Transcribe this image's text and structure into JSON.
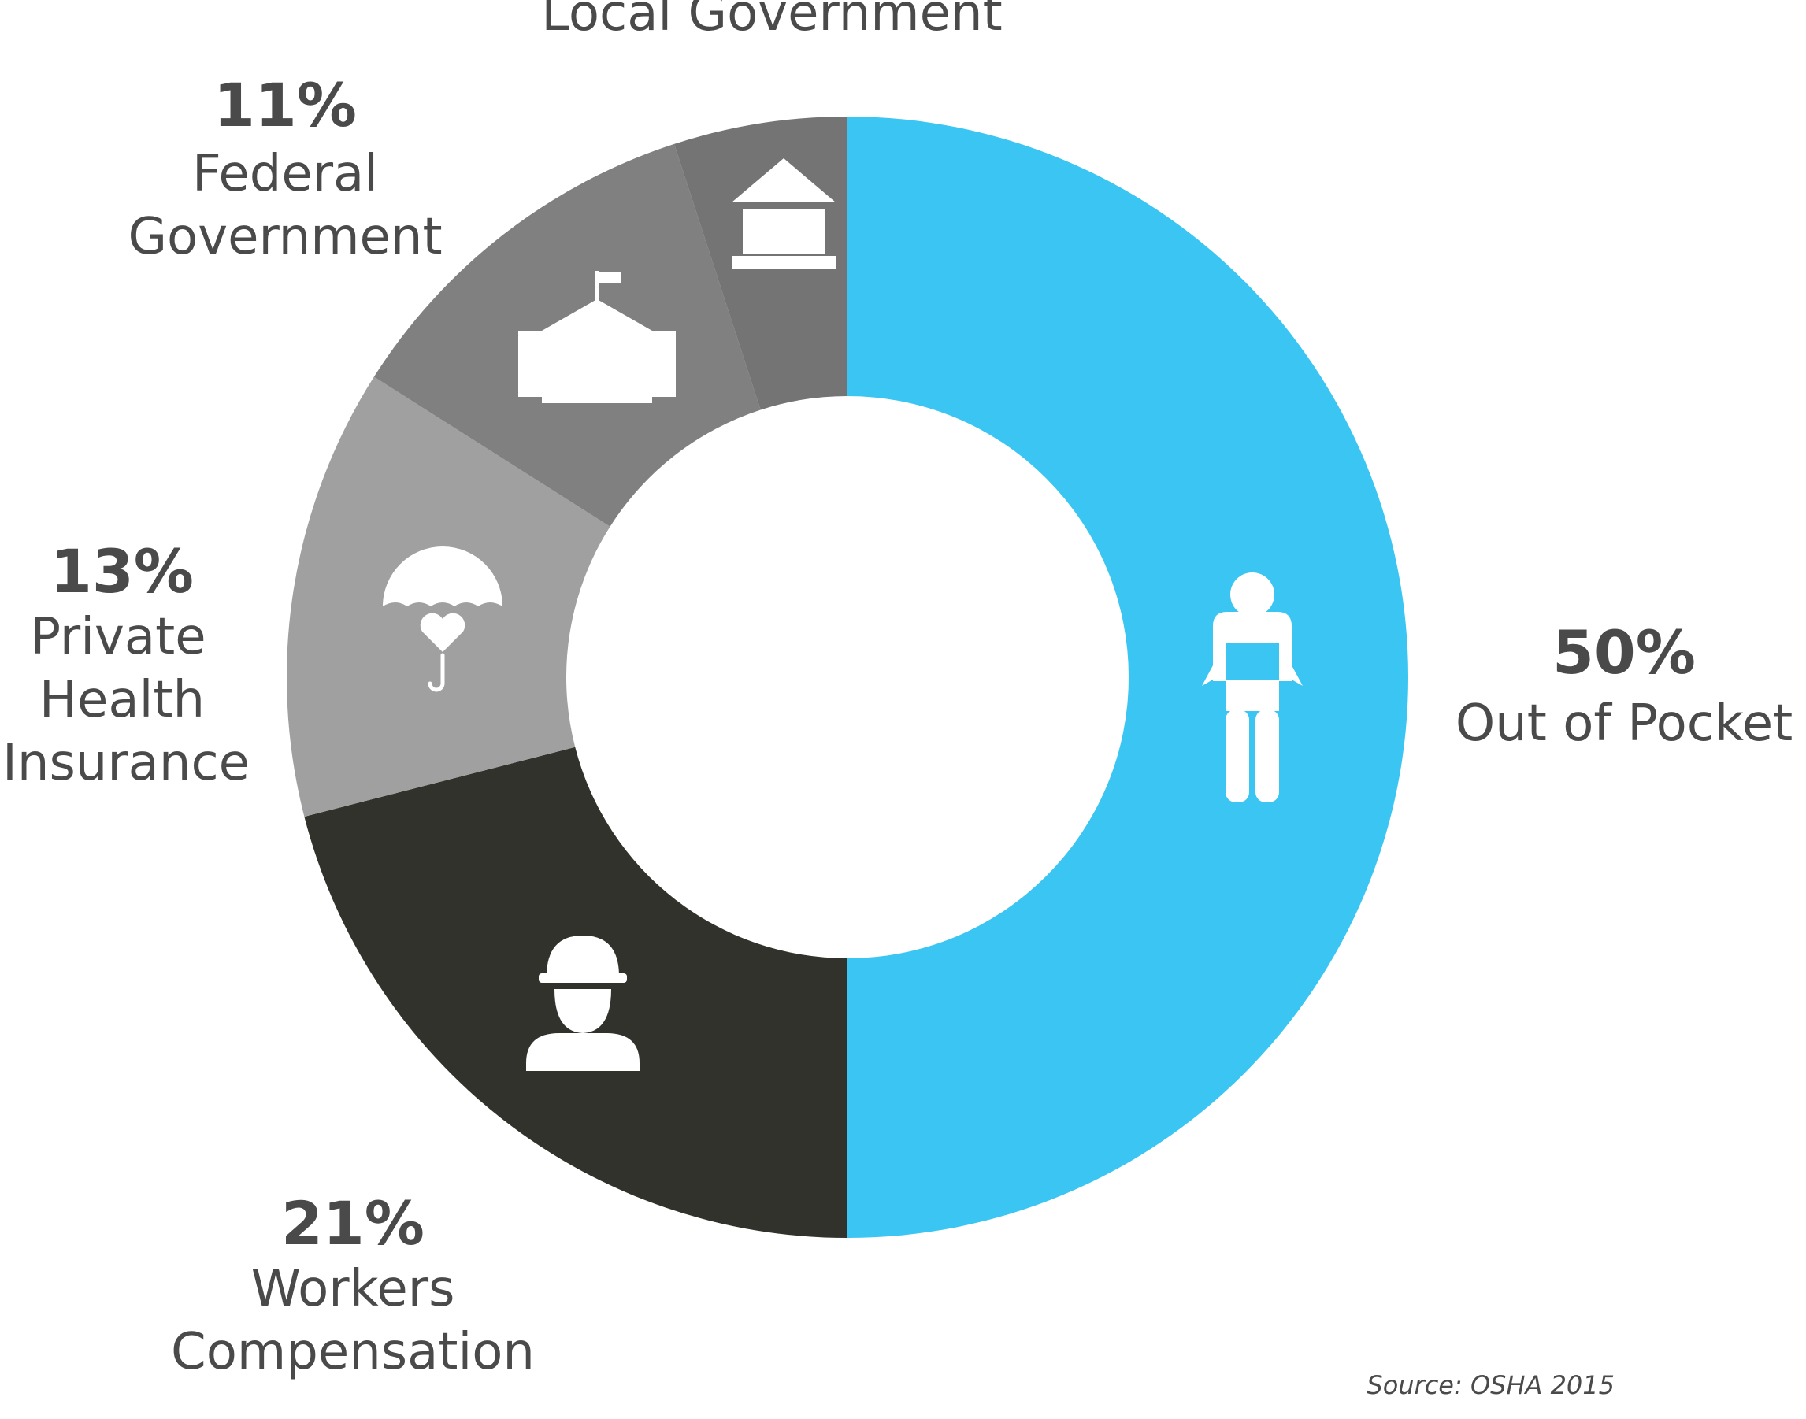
{
  "chart_data": {
    "type": "donut",
    "slices": [
      {
        "key": "out_of_pocket",
        "value": 50,
        "value_label": "50%",
        "label_lines": [
          "Out of Pocket"
        ],
        "color": "#3ac5f3",
        "icon": "person-empty-pockets-icon"
      },
      {
        "key": "workers_comp",
        "value": 21,
        "value_label": "21%",
        "label_lines": [
          "Workers",
          "Compensation"
        ],
        "color": "#31322b",
        "icon": "construction-worker-icon"
      },
      {
        "key": "private_health",
        "value": 13,
        "value_label": "13%",
        "label_lines": [
          "Private",
          "Health",
          "Insurance"
        ],
        "color": "#a0a0a0",
        "icon": "umbrella-heart-icon"
      },
      {
        "key": "federal",
        "value": 11,
        "value_label": "11%",
        "label_lines": [
          "Federal",
          "Government"
        ],
        "color": "#808080",
        "icon": "capitol-building-icon"
      },
      {
        "key": "local",
        "value": 5,
        "value_label": "",
        "label_lines": [
          "Local Government"
        ],
        "color": "#747474",
        "icon": "bank-building-icon"
      }
    ],
    "source": "Source: OSHA 2015"
  }
}
